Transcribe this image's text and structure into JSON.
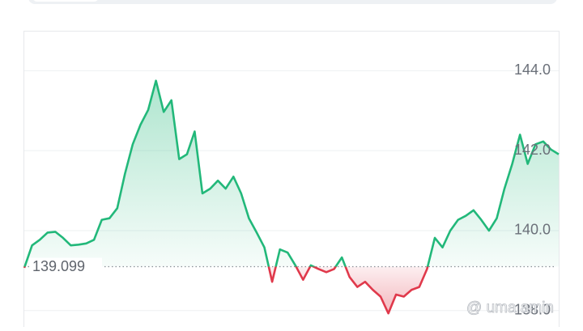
{
  "chart_data": {
    "type": "baseline-line",
    "values": [
      139.07,
      139.63,
      139.77,
      139.95,
      139.97,
      139.82,
      139.63,
      139.65,
      139.68,
      139.77,
      140.27,
      140.31,
      140.56,
      141.42,
      142.16,
      142.65,
      143.02,
      143.75,
      142.97,
      143.26,
      141.79,
      141.91,
      142.48,
      140.93,
      141.05,
      141.25,
      141.05,
      141.35,
      140.93,
      140.31,
      139.95,
      139.58,
      138.72,
      139.53,
      139.45,
      139.13,
      138.77,
      139.13,
      139.04,
      138.96,
      139.04,
      139.33,
      138.84,
      138.59,
      138.72,
      138.52,
      138.35,
      137.93,
      138.4,
      138.35,
      138.52,
      138.59,
      139.04,
      139.82,
      139.58,
      140.0,
      140.27,
      140.37,
      140.51,
      140.27,
      140.0,
      140.31,
      141.05,
      141.67,
      142.4,
      141.67,
      142.16,
      142.23,
      142.03,
      141.91
    ],
    "baseline": 139.099,
    "up_color": "#22b87a",
    "down_color": "#e0394b",
    "ylim": [
      137.59,
      145.0
    ],
    "yticks": [
      {
        "value": 138,
        "label": "138.0"
      },
      {
        "value": 140,
        "label": "140.0"
      },
      {
        "value": 142,
        "label": "142.0"
      },
      {
        "value": 144,
        "label": "144.0"
      }
    ],
    "grid": true
  },
  "watermark": "@ uma amin"
}
